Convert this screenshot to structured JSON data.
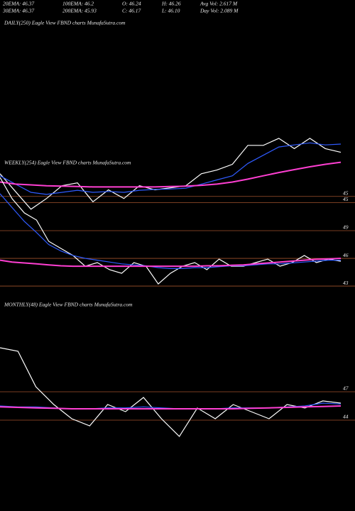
{
  "header": {
    "rows": [
      [
        "20EMA: 46.37",
        "100EMA: 46.2",
        "O: 46.24",
        "H: 46.26",
        "Avg Vol: 2.617 M"
      ],
      [
        "30EMA: 46.37",
        "200EMA: 45.93",
        "C: 46.17",
        "L: 46.10",
        "Day Vol: 2.089 M"
      ]
    ]
  },
  "chart_data": [
    {
      "type": "line",
      "title": "DAILY(250) Eagle  View  FBND charts MunafaSutra.com",
      "ylim": [
        44.7,
        49.35
      ],
      "yticks": [
        {
          "value": 45.1,
          "label": "45"
        },
        {
          "value": 44.95,
          "label": "45"
        }
      ],
      "grid": true,
      "series": [
        {
          "color": "#ffffff",
          "values": [
            45.65,
            45.22,
            44.79,
            45.05,
            45.36,
            45.43,
            44.97,
            45.26,
            45.05,
            45.36,
            45.26,
            45.31,
            45.36,
            45.65,
            45.74,
            45.88,
            46.34,
            46.34,
            46.51,
            46.26,
            46.51,
            46.26,
            46.17
          ]
        },
        {
          "color": "#2f5bff",
          "values": [
            45.6,
            45.4,
            45.2,
            45.15,
            45.2,
            45.25,
            45.2,
            45.22,
            45.2,
            45.25,
            45.27,
            45.28,
            45.3,
            45.4,
            45.5,
            45.6,
            45.9,
            46.1,
            46.3,
            46.35,
            46.4,
            46.35,
            46.37
          ]
        },
        {
          "color": "#ff3fd2",
          "values": [
            45.45,
            45.4,
            45.38,
            45.36,
            45.35,
            45.34,
            45.33,
            45.33,
            45.33,
            45.33,
            45.33,
            45.34,
            45.35,
            45.37,
            45.4,
            45.45,
            45.52,
            45.6,
            45.68,
            45.75,
            45.82,
            45.88,
            45.93
          ]
        }
      ]
    },
    {
      "type": "line",
      "title": "WEEKLY(254) Eagle  View  FBND charts MunafaSutra.com",
      "ylim": [
        41.7,
        56.3
      ],
      "yticks": [
        49,
        46,
        43
      ],
      "grid": true,
      "series": [
        {
          "color": "#ffffff",
          "values": [
            54.77,
            52.46,
            50.92,
            50.15,
            47.85,
            47.08,
            46.31,
            45.15,
            45.54,
            44.77,
            44.38,
            45.54,
            45.15,
            43.23,
            44.38,
            45.15,
            45.54,
            44.77,
            45.92,
            45.15,
            45.15,
            45.54,
            45.92,
            45.15,
            45.54,
            46.31,
            45.54,
            45.92,
            45.69
          ]
        },
        {
          "color": "#2f5bff",
          "values": [
            53,
            51.5,
            50,
            48.8,
            47.5,
            46.8,
            46.3,
            46.0,
            45.8,
            45.6,
            45.4,
            45.3,
            45.2,
            45.0,
            44.9,
            44.9,
            45.0,
            45.0,
            45.1,
            45.2,
            45.2,
            45.3,
            45.4,
            45.4,
            45.5,
            45.6,
            45.7,
            45.8,
            45.8
          ]
        },
        {
          "color": "#ff3fd2",
          "values": [
            45.8,
            45.6,
            45.5,
            45.4,
            45.3,
            45.2,
            45.15,
            45.15,
            45.15,
            45.15,
            45.15,
            45.15,
            45.15,
            45.15,
            45.15,
            45.15,
            45.15,
            45.2,
            45.2,
            45.25,
            45.3,
            45.4,
            45.5,
            45.6,
            45.7,
            45.8,
            45.9,
            45.95,
            46.0
          ]
        }
      ]
    },
    {
      "type": "line",
      "title": "MONTHLY(48) Eagle  View  FBND charts MunafaSutra.com",
      "ylim": [
        41.9,
        55.4
      ],
      "yticks": [
        47,
        44
      ],
      "grid": true,
      "series": [
        {
          "color": "#ffffff",
          "values": [
            51.65,
            51.28,
            47.53,
            45.65,
            44.15,
            43.4,
            45.65,
            44.9,
            46.4,
            44.15,
            42.28,
            45.28,
            44.15,
            45.65,
            44.9,
            44.15,
            45.65,
            45.28,
            46.03,
            45.8
          ]
        },
        {
          "color": "#2f5bff",
          "values": [
            45.5,
            45.4,
            45.4,
            45.3,
            45.2,
            45.2,
            45.3,
            45.3,
            45.4,
            45.3,
            45.2,
            45.2,
            45.2,
            45.3,
            45.3,
            45.3,
            45.4,
            45.5,
            45.8,
            45.7
          ]
        },
        {
          "color": "#ff3fd2",
          "values": [
            45.4,
            45.35,
            45.3,
            45.25,
            45.2,
            45.2,
            45.2,
            45.2,
            45.2,
            45.2,
            45.2,
            45.2,
            45.2,
            45.2,
            45.25,
            45.3,
            45.35,
            45.4,
            45.45,
            45.5
          ]
        }
      ]
    }
  ]
}
